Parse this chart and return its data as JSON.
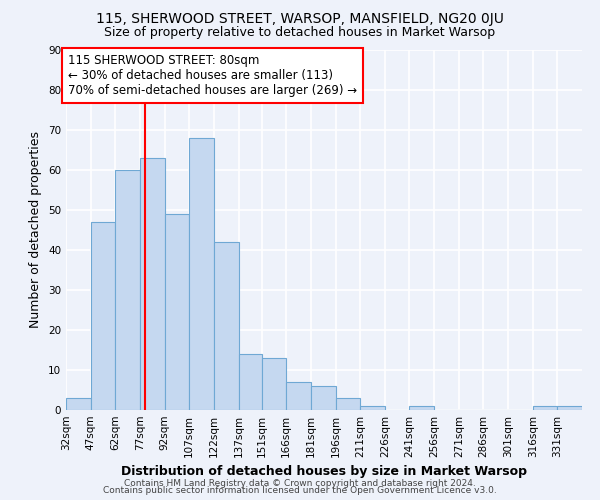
{
  "title": "115, SHERWOOD STREET, WARSOP, MANSFIELD, NG20 0JU",
  "subtitle": "Size of property relative to detached houses in Market Warsop",
  "xlabel": "Distribution of detached houses by size in Market Warsop",
  "ylabel": "Number of detached properties",
  "bin_labels": [
    "32sqm",
    "47sqm",
    "62sqm",
    "77sqm",
    "92sqm",
    "107sqm",
    "122sqm",
    "137sqm",
    "151sqm",
    "166sqm",
    "181sqm",
    "196sqm",
    "211sqm",
    "226sqm",
    "241sqm",
    "256sqm",
    "271sqm",
    "286sqm",
    "301sqm",
    "316sqm",
    "331sqm"
  ],
  "bin_edges": [
    32,
    47,
    62,
    77,
    92,
    107,
    122,
    137,
    151,
    166,
    181,
    196,
    211,
    226,
    241,
    256,
    271,
    286,
    301,
    316,
    331,
    346
  ],
  "bar_heights": [
    3,
    47,
    60,
    63,
    49,
    68,
    42,
    14,
    13,
    7,
    6,
    3,
    1,
    0,
    1,
    0,
    0,
    0,
    0,
    1,
    1
  ],
  "bar_color": "#c5d8f0",
  "bar_edgecolor": "#6fa8d4",
  "vline_x": 80,
  "vline_color": "red",
  "ylim": [
    0,
    90
  ],
  "yticks": [
    0,
    10,
    20,
    30,
    40,
    50,
    60,
    70,
    80,
    90
  ],
  "annotation_text": "115 SHERWOOD STREET: 80sqm\n← 30% of detached houses are smaller (113)\n70% of semi-detached houses are larger (269) →",
  "annotation_box_color": "white",
  "annotation_box_edgecolor": "red",
  "footer_line1": "Contains HM Land Registry data © Crown copyright and database right 2024.",
  "footer_line2": "Contains public sector information licensed under the Open Government Licence v3.0.",
  "background_color": "#eef2fa",
  "grid_color": "white",
  "title_fontsize": 10,
  "subtitle_fontsize": 9,
  "axis_label_fontsize": 9,
  "tick_fontsize": 7.5,
  "annotation_fontsize": 8.5,
  "footer_fontsize": 6.5
}
